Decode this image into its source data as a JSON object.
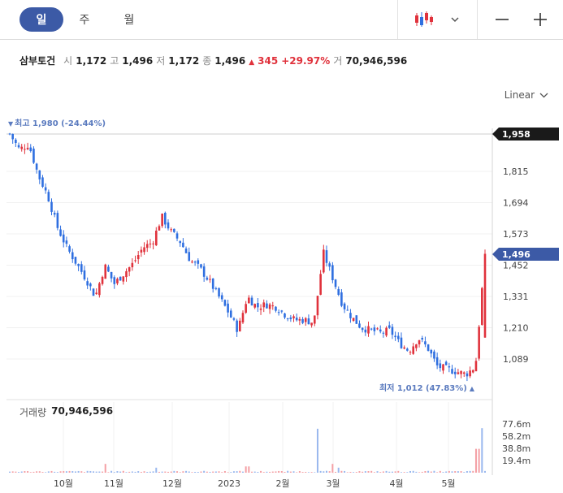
{
  "periods": [
    {
      "label": "일",
      "active": true
    },
    {
      "label": "주",
      "active": false
    },
    {
      "label": "월",
      "active": false
    }
  ],
  "icons": {
    "chart_type": "candlestick-icon",
    "dropdown": "chevron-down-icon",
    "zoom_out": "minus-icon",
    "zoom_in": "plus-icon"
  },
  "stock": {
    "name": "삼부토건",
    "open_label": "시",
    "open": "1,172",
    "high_label": "고",
    "high": "1,496",
    "low_label": "저",
    "low": "1,172",
    "close_label": "종",
    "close": "1,496",
    "change": "345",
    "change_pct": "+29.97%",
    "volume_label": "거",
    "volume": "70,946,596"
  },
  "scale_mode": "Linear",
  "max_marker": {
    "text": "최고 1,980 (-24.44%)",
    "arrow": "▼"
  },
  "min_marker": {
    "text": "최저 1,012 (47.83%)",
    "arrow": "▲"
  },
  "price_axis": {
    "ticks": [
      "1,815",
      "1,694",
      "1,573",
      "1,452",
      "1,331",
      "1,210",
      "1,089"
    ],
    "tick_values": [
      1815,
      1694,
      1573,
      1452,
      1331,
      1210,
      1089
    ],
    "hover_tag": "1,958",
    "hover_value": 1958,
    "current_tag": "1,496",
    "current_value": 1496
  },
  "volume_panel": {
    "label": "거래량",
    "value": "70,946,596",
    "ticks": [
      "77.6m",
      "58.2m",
      "38.8m",
      "19.4m"
    ],
    "tick_values": [
      77.6,
      58.2,
      38.8,
      19.4
    ]
  },
  "time_axis": [
    "10월",
    "11월",
    "12월",
    "2023",
    "2월",
    "3월",
    "4월",
    "5월"
  ],
  "colors": {
    "up": "#e0323c",
    "down": "#2f6fe0",
    "accent": "#3c5aa6",
    "tag_dark": "#1a1a1a"
  },
  "chart_data": {
    "type": "candlestick",
    "price_range": [
      1000,
      1990
    ],
    "volume_range_m": [
      0,
      90
    ],
    "close_path": [
      [
        0,
        1960
      ],
      [
        0.02,
        1900
      ],
      [
        0.04,
        1920
      ],
      [
        0.06,
        1800
      ],
      [
        0.08,
        1720
      ],
      [
        0.1,
        1600
      ],
      [
        0.12,
        1520
      ],
      [
        0.14,
        1460
      ],
      [
        0.16,
        1400
      ],
      [
        0.18,
        1330
      ],
      [
        0.2,
        1450
      ],
      [
        0.22,
        1380
      ],
      [
        0.24,
        1420
      ],
      [
        0.26,
        1460
      ],
      [
        0.28,
        1520
      ],
      [
        0.3,
        1540
      ],
      [
        0.32,
        1640
      ],
      [
        0.34,
        1580
      ],
      [
        0.36,
        1540
      ],
      [
        0.38,
        1470
      ],
      [
        0.4,
        1440
      ],
      [
        0.42,
        1390
      ],
      [
        0.44,
        1330
      ],
      [
        0.46,
        1270
      ],
      [
        0.48,
        1200
      ],
      [
        0.5,
        1330
      ],
      [
        0.52,
        1290
      ],
      [
        0.54,
        1300
      ],
      [
        0.56,
        1290
      ],
      [
        0.58,
        1260
      ],
      [
        0.6,
        1240
      ],
      [
        0.62,
        1240
      ],
      [
        0.64,
        1230
      ],
      [
        0.66,
        1500
      ],
      [
        0.68,
        1400
      ],
      [
        0.7,
        1300
      ],
      [
        0.72,
        1250
      ],
      [
        0.74,
        1210
      ],
      [
        0.76,
        1200
      ],
      [
        0.78,
        1190
      ],
      [
        0.8,
        1200
      ],
      [
        0.82,
        1150
      ],
      [
        0.84,
        1120
      ],
      [
        0.86,
        1170
      ],
      [
        0.88,
        1130
      ],
      [
        0.9,
        1060
      ],
      [
        0.92,
        1050
      ],
      [
        0.94,
        1040
      ],
      [
        0.96,
        1030
      ],
      [
        0.98,
        1060
      ],
      [
        1.0,
        1496
      ]
    ],
    "volume_spikes_m": [
      [
        0.2,
        14
      ],
      [
        0.31,
        8
      ],
      [
        0.5,
        10
      ],
      [
        0.65,
        70
      ],
      [
        0.68,
        14
      ],
      [
        0.69,
        8
      ],
      [
        0.995,
        70.9
      ],
      [
        0.985,
        38
      ]
    ]
  }
}
